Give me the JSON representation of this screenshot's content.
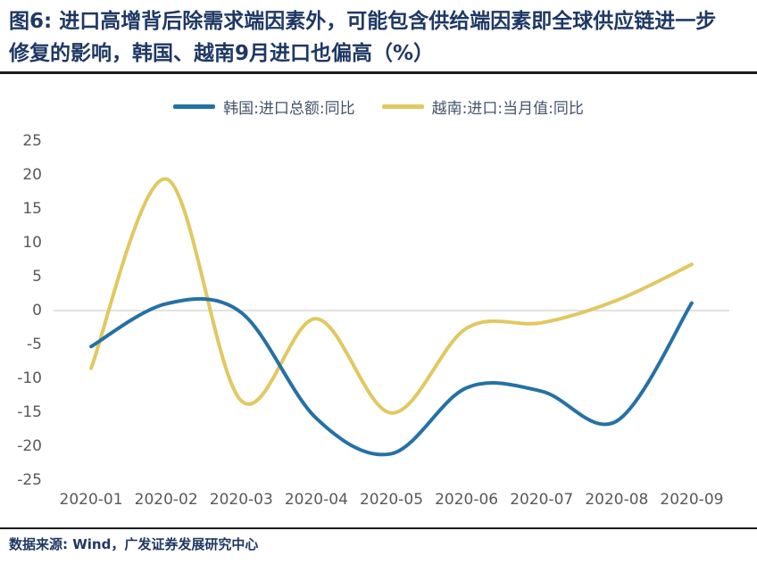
{
  "title": {
    "full": "图6: 进口高增背后除需求端因素外，可能包含供给端因素即全球供应链进一步修复的影响，韩国、越南9月进口也偏高（%）",
    "line1": "图6: 进口高增背后除需求端因素外，可能包含供给端因素即全球供应链进一步",
    "line2": "修复的影响，韩国、越南9月进口也偏高（%）"
  },
  "footer": {
    "text": "数据来源: Wind，广发证券发展研究中心"
  },
  "colors": {
    "title": "#1F3864",
    "axis_label": "#595959",
    "legend_label": "#44546A",
    "gridline": "#D9D9D9",
    "rule": "#1A1A1A",
    "korea_line": "#2571A5",
    "vietnam_line": "#E1C860"
  },
  "chart_data": {
    "type": "line",
    "title": "图6: 进口高增背后除需求端因素外，可能包含供给端因素即全球供应链进一步修复的影响，韩国、越南9月进口也偏高（%）",
    "categories": [
      "2020-01",
      "2020-02",
      "2020-03",
      "2020-04",
      "2020-05",
      "2020-06",
      "2020-07",
      "2020-08",
      "2020-09"
    ],
    "series": [
      {
        "key": "korea",
        "name": "韩国:进口总额:同比",
        "color": "#2571A5",
        "values": [
          -5.3,
          1.0,
          -0.3,
          -15.9,
          -21.1,
          -11.4,
          -11.9,
          -16.3,
          1.1
        ]
      },
      {
        "key": "vietnam",
        "name": "越南:进口:当月值:同比",
        "color": "#E1C860",
        "values": [
          -8.5,
          19.4,
          -13.3,
          -1.2,
          -15.1,
          -2.6,
          -1.8,
          1.5,
          6.8
        ]
      }
    ],
    "unit": "%",
    "xlabel": "",
    "ylabel": "",
    "ylim": [
      -25,
      25
    ],
    "yticks": [
      25,
      20,
      15,
      10,
      5,
      0,
      -5,
      -10,
      -15,
      -20,
      -25
    ],
    "grid": "zero-baseline-only",
    "legend_position": "top",
    "smooth": true
  }
}
